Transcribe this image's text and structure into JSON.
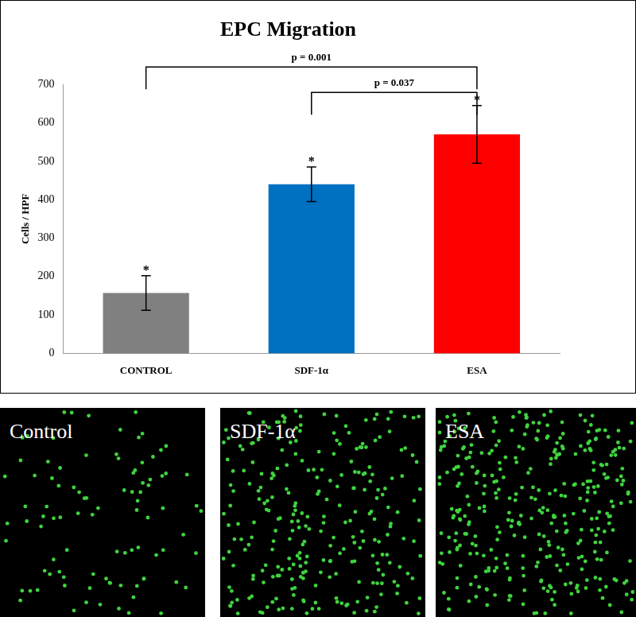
{
  "chart_data": {
    "type": "bar",
    "title": "EPC Migration",
    "y_label": "Cells / HPF",
    "categories": [
      "CONTROL",
      "SDF-1α",
      "ESA"
    ],
    "values": [
      157,
      440,
      570
    ],
    "errors": [
      45,
      45,
      75
    ],
    "colors": [
      "#808080",
      "#0070c0",
      "#ff0000"
    ],
    "significance_marks": [
      "*",
      "*",
      "*"
    ],
    "annotations": [
      {
        "text": "p = 0.001",
        "from": "CONTROL",
        "to": "ESA"
      },
      {
        "text": "p = 0.037",
        "from": "SDF-1α",
        "to": "ESA"
      }
    ],
    "ylim": [
      0,
      700
    ],
    "yticks": [
      0,
      100,
      200,
      300,
      400,
      500,
      600,
      700
    ],
    "grid": false
  },
  "panels": [
    {
      "label": "Control"
    },
    {
      "label": "SDF-1α"
    },
    {
      "label": "ESA"
    }
  ]
}
